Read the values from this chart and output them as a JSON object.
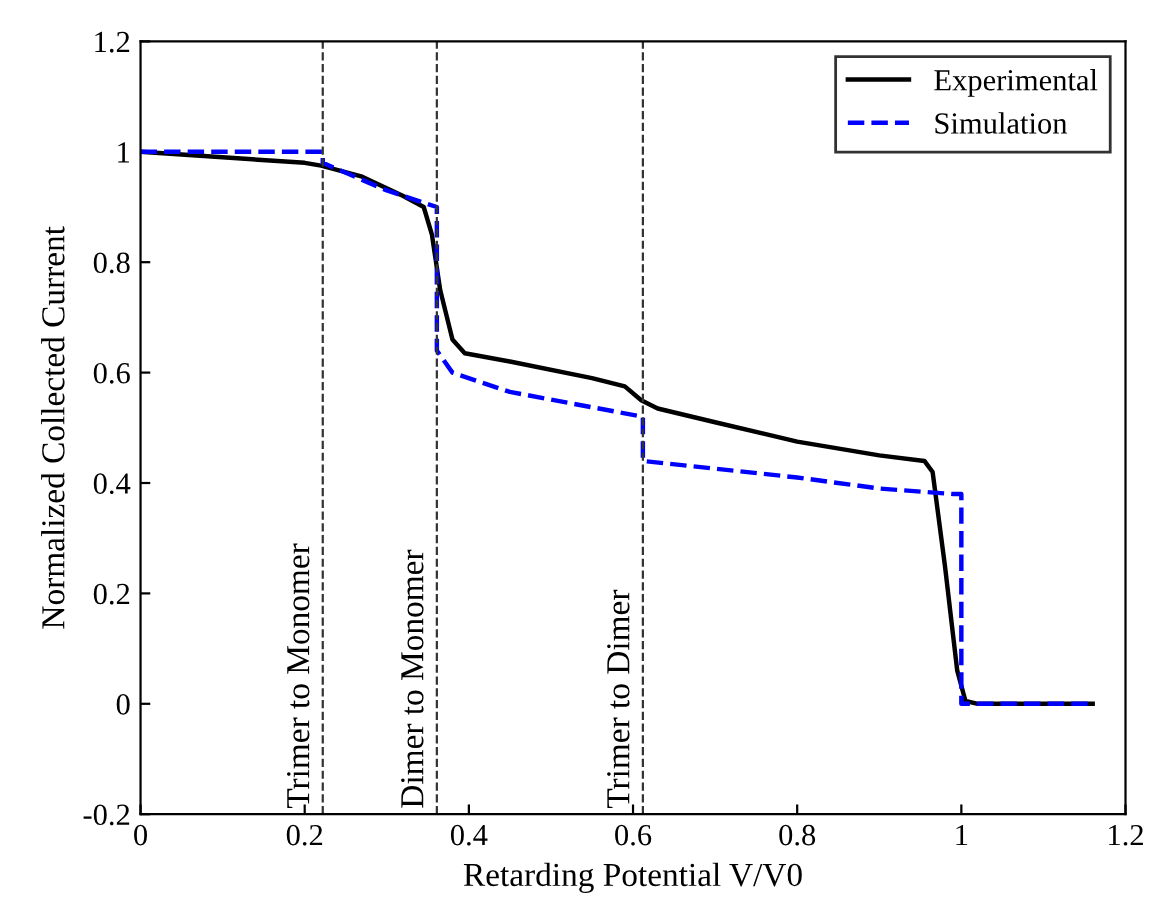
{
  "chart_data": {
    "type": "line",
    "xlabel": "Retarding Potential V/V0",
    "ylabel": "Normalized Collected Current",
    "xlim": [
      0,
      1.2
    ],
    "ylim": [
      -0.2,
      1.2
    ],
    "xticks": [
      0,
      0.2,
      0.4,
      0.6,
      0.8,
      1,
      1.2
    ],
    "yticks": [
      -0.2,
      0,
      0.2,
      0.4,
      0.6,
      0.8,
      1,
      1.2
    ],
    "grid": false,
    "legend": "top right",
    "series": [
      {
        "name": "Experimental",
        "color": "#000000",
        "line_style": "solid",
        "x": [
          0,
          0.1,
          0.2,
          0.22,
          0.27,
          0.32,
          0.345,
          0.355,
          0.365,
          0.38,
          0.395,
          0.45,
          0.55,
          0.59,
          0.61,
          0.63,
          0.7,
          0.8,
          0.9,
          0.955,
          0.965,
          0.98,
          0.995,
          1.005,
          1.02,
          1.16
        ],
        "values": [
          1,
          0.99,
          0.98,
          0.975,
          0.955,
          0.92,
          0.9,
          0.85,
          0.75,
          0.66,
          0.635,
          0.62,
          0.59,
          0.575,
          0.55,
          0.535,
          0.51,
          0.475,
          0.45,
          0.44,
          0.42,
          0.25,
          0.06,
          0.005,
          0,
          0
        ]
      },
      {
        "name": "Simulation",
        "color": "#0000ff",
        "line_style": "dashed",
        "x": [
          0,
          0.222,
          0.222,
          0.3,
          0.361,
          0.361,
          0.38,
          0.45,
          0.612,
          0.612,
          0.8,
          0.9,
          0.99,
          1.0,
          1.0,
          1.16
        ],
        "values": [
          1,
          1,
          0.98,
          0.93,
          0.9,
          0.64,
          0.6,
          0.565,
          0.52,
          0.44,
          0.41,
          0.39,
          0.38,
          0.38,
          0,
          0
        ]
      }
    ],
    "ref_lines": [
      {
        "axis": "x",
        "value": 0.222,
        "label": "Trimer to Monomer",
        "color": "#333333",
        "line_style": "dashed"
      },
      {
        "axis": "x",
        "value": 0.361,
        "label": "Dimer to Monomer",
        "color": "#333333",
        "line_style": "dashed"
      },
      {
        "axis": "x",
        "value": 0.612,
        "label": "Trimer to Dimer",
        "color": "#333333",
        "line_style": "dashed"
      }
    ]
  }
}
